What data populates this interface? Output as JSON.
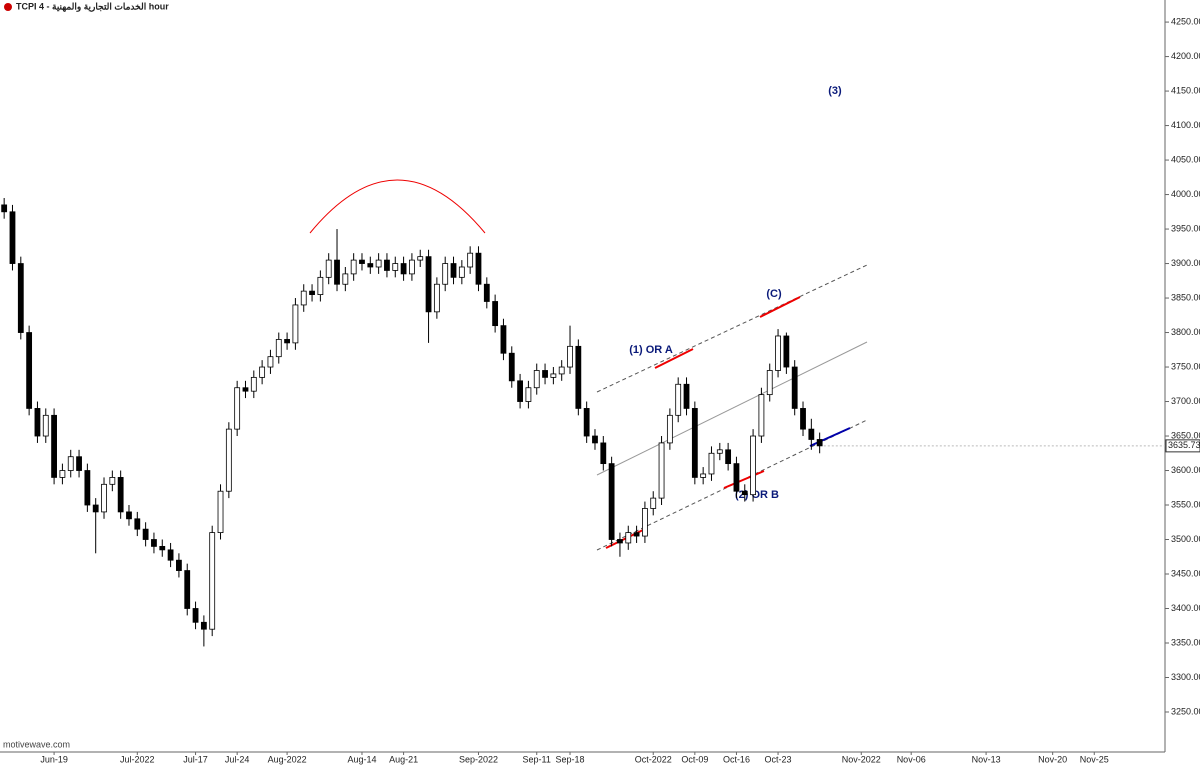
{
  "chart_data": {
    "type": "candlestick",
    "title": "TCPI  4 - الخدمات التجارية والمهنية  hour",
    "watermark": "motivewave.com",
    "annotations": [
      "(1) OR A",
      "(2) OR B",
      "(C)",
      "(3)"
    ],
    "categories": [
      null,
      null,
      null,
      null,
      null,
      null,
      "Jun-19",
      null,
      null,
      null,
      null,
      null,
      null,
      null,
      null,
      null,
      "Jul-2022",
      null,
      null,
      null,
      null,
      null,
      null,
      "Jul-17",
      null,
      null,
      null,
      null,
      "Jul-24",
      null,
      null,
      null,
      null,
      null,
      "Aug-2022",
      null,
      null,
      null,
      null,
      null,
      null,
      null,
      null,
      "Aug-14",
      null,
      null,
      null,
      null,
      "Aug-21",
      null,
      null,
      null,
      null,
      null,
      null,
      null,
      null,
      "Sep-2022",
      null,
      null,
      null,
      null,
      null,
      null,
      "Sep-11",
      null,
      null,
      null,
      "Sep-18",
      null,
      null,
      null,
      null,
      null,
      null,
      null,
      null,
      null,
      "Oct-2022",
      null,
      null,
      null,
      null,
      "Oct-09",
      null,
      null,
      null,
      null,
      "Oct-16",
      null,
      null,
      null,
      null,
      "Oct-23",
      null,
      null,
      null,
      null,
      null,
      null,
      null,
      null,
      null,
      "Nov-2022",
      null,
      null,
      null,
      null,
      null,
      "Nov-06",
      null,
      null,
      null,
      null,
      null,
      null,
      null,
      null,
      "Nov-13",
      null,
      null,
      null,
      null,
      null,
      null,
      null,
      "Nov-20",
      null,
      null,
      null,
      null,
      "Nov-25",
      null,
      null,
      null,
      null,
      null,
      null,
      null,
      null
    ],
    "open": [
      3985,
      3975,
      3900,
      3800,
      3690,
      3650,
      3680,
      3590,
      3600,
      3620,
      3600,
      3550,
      3540,
      3580,
      3590,
      3540,
      3530,
      3515,
      3500,
      3490,
      3485,
      3470,
      3455,
      3400,
      3380,
      3370,
      3510,
      3570,
      3660,
      3720,
      3715,
      3735,
      3750,
      3765,
      3790,
      3785,
      3840,
      3860,
      3855,
      3880,
      3905,
      3870,
      3885,
      3905,
      3900,
      3895,
      3905,
      3890,
      3900,
      3885,
      3905,
      3910,
      3830,
      3870,
      3900,
      3880,
      3895,
      3915,
      3870,
      3845,
      3810,
      3770,
      3730,
      3700,
      3720,
      3745,
      3735,
      3740,
      3750,
      3780,
      3690,
      3650,
      3640,
      3610,
      3500,
      3495,
      3510,
      3505,
      3545,
      3560,
      3640,
      3680,
      3725,
      3690,
      3590,
      3595,
      3625,
      3630,
      3610,
      3570,
      3565,
      3650,
      3710,
      3745,
      3795,
      3750,
      3690,
      3660,
      3645,
      null,
      null,
      null,
      null,
      null,
      null,
      null,
      null,
      null,
      null,
      null,
      null,
      null,
      null,
      null,
      null,
      null,
      null,
      null,
      null,
      null,
      null,
      null,
      null,
      null,
      null,
      null,
      null,
      null,
      null,
      null,
      null,
      null,
      null,
      null,
      null,
      null,
      null,
      null,
      null,
      null
    ],
    "high": [
      3995,
      3985,
      3910,
      3810,
      3700,
      3690,
      3690,
      3610,
      3630,
      3630,
      3610,
      3560,
      3590,
      3600,
      3600,
      3550,
      3540,
      3525,
      3510,
      3500,
      3495,
      3480,
      3465,
      3410,
      3390,
      3520,
      3580,
      3670,
      3730,
      3730,
      3745,
      3760,
      3775,
      3800,
      3800,
      3850,
      3870,
      3870,
      3890,
      3915,
      3950,
      3895,
      3915,
      3915,
      3910,
      3915,
      3915,
      3910,
      3910,
      3915,
      3920,
      3920,
      3880,
      3910,
      3910,
      3905,
      3925,
      3925,
      3880,
      3855,
      3820,
      3780,
      3740,
      3730,
      3755,
      3755,
      3750,
      3760,
      3810,
      3790,
      3700,
      3660,
      3650,
      3620,
      3510,
      3520,
      3520,
      3555,
      3570,
      3650,
      3690,
      3735,
      3735,
      3700,
      3605,
      3635,
      3640,
      3640,
      3620,
      3580,
      3660,
      3720,
      3755,
      3805,
      3800,
      3760,
      3700,
      3675,
      3655,
      null,
      null,
      null,
      null,
      null,
      null,
      null,
      null,
      null,
      null,
      null,
      null,
      null,
      null,
      null,
      null,
      null,
      null,
      null,
      null,
      null,
      null,
      null,
      null,
      null,
      null,
      null,
      null,
      null,
      null,
      null,
      null,
      null,
      null,
      null,
      null,
      null,
      null,
      null,
      null,
      null
    ],
    "low": [
      3965,
      3890,
      3790,
      3680,
      3640,
      3640,
      3580,
      3580,
      3590,
      3590,
      3540,
      3480,
      3530,
      3570,
      3530,
      3520,
      3505,
      3490,
      3480,
      3475,
      3460,
      3445,
      3390,
      3370,
      3345,
      3360,
      3500,
      3560,
      3650,
      3705,
      3705,
      3725,
      3740,
      3755,
      3775,
      3775,
      3830,
      3845,
      3845,
      3870,
      3860,
      3860,
      3875,
      3890,
      3885,
      3885,
      3880,
      3880,
      3875,
      3875,
      3895,
      3785,
      3820,
      3860,
      3870,
      3870,
      3885,
      3860,
      3835,
      3800,
      3760,
      3720,
      3690,
      3690,
      3710,
      3725,
      3725,
      3730,
      3740,
      3680,
      3640,
      3630,
      3600,
      3490,
      3475,
      3485,
      3495,
      3495,
      3535,
      3550,
      3630,
      3670,
      3680,
      3580,
      3580,
      3585,
      3615,
      3600,
      3560,
      3555,
      3555,
      3640,
      3700,
      3735,
      3740,
      3680,
      3650,
      3630,
      3625,
      null,
      null,
      null,
      null,
      null,
      null,
      null,
      null,
      null,
      null,
      null,
      null,
      null,
      null,
      null,
      null,
      null,
      null,
      null,
      null,
      null,
      null,
      null,
      null,
      null,
      null,
      null,
      null,
      null,
      null,
      null,
      null,
      null,
      null,
      null,
      null,
      null,
      null,
      null,
      null,
      null
    ],
    "close": [
      3975,
      3900,
      3800,
      3690,
      3650,
      3680,
      3590,
      3600,
      3620,
      3600,
      3550,
      3540,
      3580,
      3590,
      3540,
      3530,
      3515,
      3500,
      3490,
      3485,
      3470,
      3455,
      3400,
      3380,
      3370,
      3510,
      3570,
      3660,
      3720,
      3715,
      3735,
      3750,
      3765,
      3790,
      3785,
      3840,
      3860,
      3855,
      3880,
      3905,
      3870,
      3885,
      3905,
      3900,
      3895,
      3905,
      3890,
      3900,
      3885,
      3905,
      3910,
      3830,
      3870,
      3900,
      3880,
      3895,
      3915,
      3870,
      3845,
      3810,
      3770,
      3730,
      3700,
      3720,
      3745,
      3735,
      3740,
      3750,
      3780,
      3690,
      3650,
      3640,
      3610,
      3500,
      3495,
      3510,
      3505,
      3545,
      3560,
      3640,
      3680,
      3725,
      3690,
      3590,
      3595,
      3625,
      3630,
      3610,
      3570,
      3565,
      3650,
      3710,
      3745,
      3795,
      3750,
      3690,
      3660,
      3645,
      3635.73,
      null,
      null,
      null,
      null,
      null,
      null,
      null,
      null,
      null,
      null,
      null,
      null,
      null,
      null,
      null,
      null,
      null,
      null,
      null,
      null,
      null,
      null,
      null,
      null,
      null,
      null,
      null,
      null,
      null,
      null,
      null,
      null,
      null,
      null,
      null,
      null,
      null,
      null,
      null,
      null,
      null
    ],
    "up_color": "#ffffff",
    "down_color": "#000000",
    "ylim": [
      3192,
      4282
    ],
    "yticks": [
      {
        "value": 3250,
        "label": "3250.00"
      },
      {
        "value": 3300,
        "label": "3300.00"
      },
      {
        "value": 3350,
        "label": "3350.00"
      },
      {
        "value": 3400,
        "label": "3400.00"
      },
      {
        "value": 3450,
        "label": "3450.00"
      },
      {
        "value": 3500,
        "label": "3500.00"
      },
      {
        "value": 3550,
        "label": "3550.00"
      },
      {
        "value": 3600,
        "label": "3600.00"
      },
      {
        "value": 3650,
        "label": "3650.00"
      },
      {
        "value": 3700,
        "label": "3700.00"
      },
      {
        "value": 3750,
        "label": "3750.00"
      },
      {
        "value": 3800,
        "label": "3800.00"
      },
      {
        "value": 3850,
        "label": "3850.00"
      },
      {
        "value": 3900,
        "label": "3900.00"
      },
      {
        "value": 3950,
        "label": "3950.00"
      },
      {
        "value": 4000,
        "label": "4000.00"
      },
      {
        "value": 4050,
        "label": "4050.00"
      },
      {
        "value": 4100,
        "label": "4100.00"
      },
      {
        "value": 4150,
        "label": "4150.00"
      },
      {
        "value": 4200,
        "label": "4200.00"
      },
      {
        "value": 4250,
        "label": "4250.00"
      }
    ],
    "grid": false
  }
}
